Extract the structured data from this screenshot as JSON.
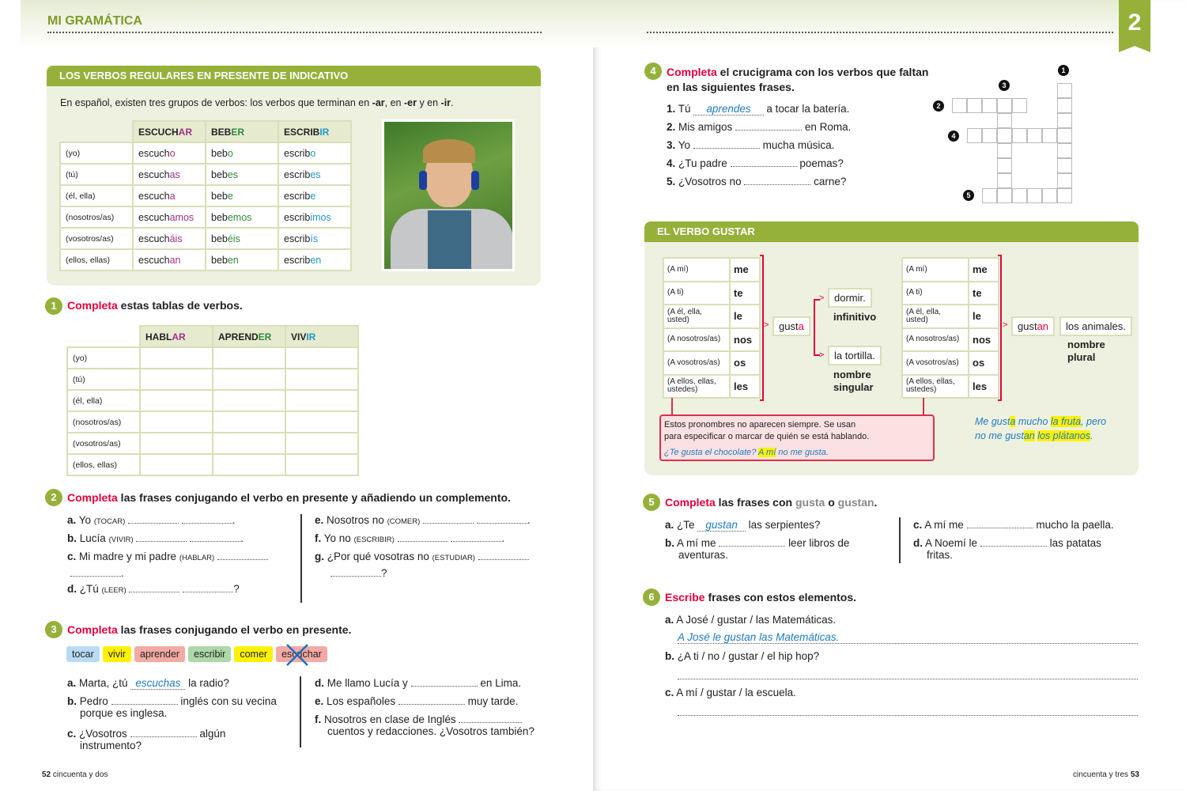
{
  "header": {
    "left_title": "MI GRAMÁTICA",
    "unit_number": "2"
  },
  "grammar_box": {
    "title": "LOS VERBOS REGULARES EN PRESENTE DE INDICATIVO",
    "intro": [
      "En español, existen tres grupos de verbos: los verbos que terminan en ",
      "-ar",
      ", en ",
      "-er",
      " y en ",
      "-ir",
      "."
    ],
    "columns": [
      [
        "ESCUCH",
        "AR"
      ],
      [
        "BEB",
        "ER"
      ],
      [
        "ESCRIB",
        "IR"
      ]
    ],
    "rows": [
      {
        "person": "(yo)",
        "forms": [
          [
            "escuch",
            "o"
          ],
          [
            "beb",
            "o"
          ],
          [
            "escrib",
            "o"
          ]
        ]
      },
      {
        "person": "(tú)",
        "forms": [
          [
            "escuch",
            "as"
          ],
          [
            "beb",
            "es"
          ],
          [
            "escrib",
            "es"
          ]
        ]
      },
      {
        "person": "(él, ella)",
        "forms": [
          [
            "escuch",
            "a"
          ],
          [
            "beb",
            "e"
          ],
          [
            "escrib",
            "e"
          ]
        ]
      },
      {
        "person": "(nosotros/as)",
        "forms": [
          [
            "escuch",
            "amos"
          ],
          [
            "beb",
            "emos"
          ],
          [
            "escrib",
            "imos"
          ]
        ]
      },
      {
        "person": "(vosotros/as)",
        "forms": [
          [
            "escuch",
            "áis"
          ],
          [
            "beb",
            "éis"
          ],
          [
            "escrib",
            "ís"
          ]
        ]
      },
      {
        "person": "(ellos, ellas)",
        "forms": [
          [
            "escuch",
            "an"
          ],
          [
            "beb",
            "en"
          ],
          [
            "escrib",
            "en"
          ]
        ]
      }
    ],
    "photo": "young man with headphones lying on grass"
  },
  "ex1": {
    "num": "1",
    "verb": "Completa",
    "rest": " estas tablas de verbos.",
    "columns": [
      [
        "HABL",
        "AR"
      ],
      [
        "APREND",
        "ER"
      ],
      [
        "VIV",
        "IR"
      ]
    ],
    "persons": [
      "(yo)",
      "(tú)",
      "(él, ella)",
      "(nosotros/as)",
      "(vosotros/as)",
      "(ellos, ellas)"
    ]
  },
  "ex2": {
    "num": "2",
    "verb": "Completa",
    "rest": " las frases conjugando el verbo en presente y añadiendo un complemento.",
    "items": [
      {
        "l": "a.",
        "t": "Yo",
        "v": "(TOCAR)",
        "end": "."
      },
      {
        "l": "b.",
        "t": "Lucía",
        "v": "(VIVIR)",
        "end": "."
      },
      {
        "l": "c.",
        "t": "Mi madre y mi padre",
        "v": "(HABLAR)",
        "end": "."
      },
      {
        "l": "d.",
        "t": "¿Tú",
        "v": "(LEER)",
        "end": "?"
      },
      {
        "l": "e.",
        "t": "Nosotros no",
        "v": "(COMER)",
        "end": "."
      },
      {
        "l": "f.",
        "t": "Yo no",
        "v": "(ESCRIBIR)",
        "end": "."
      },
      {
        "l": "g.",
        "t": "¿Por qué vosotras no",
        "v": "(ESTUDIAR)",
        "end": "?"
      }
    ]
  },
  "ex3": {
    "num": "3",
    "verb": "Completa",
    "rest": " las frases conjugando el verbo en presente.",
    "chips": [
      {
        "t": "tocar",
        "c": "#b7dbf3"
      },
      {
        "t": "vivir",
        "c": "#fff200"
      },
      {
        "t": "aprender",
        "c": "#f2aaa3"
      },
      {
        "t": "escribir",
        "c": "#add8a8"
      },
      {
        "t": "comer",
        "c": "#fff200"
      },
      {
        "t": "escuchar",
        "c": "#f2aaa3",
        "crossed": true
      }
    ],
    "items": {
      "a": [
        "a.",
        "Marta, ¿tú",
        "escuchas",
        "la radio?"
      ],
      "b": [
        "b.",
        "Pedro",
        "inglés con su vecina",
        "porque es inglesa."
      ],
      "c": [
        "c.",
        "¿Vosotros",
        "algún",
        "instrumento?"
      ],
      "d": [
        "d.",
        "Me llamo Lucía y",
        "en Lima."
      ],
      "e": [
        "e.",
        "Los españoles",
        "muy tarde."
      ],
      "f": [
        "f.",
        "Nosotros en clase de Inglés",
        "cuentos y redacciones. ¿Vosotros también?"
      ]
    }
  },
  "ex4": {
    "num": "4",
    "verb": "Completa",
    "rest": " el crucigrama con los verbos que faltan",
    "rest2": "en las siguientes frases.",
    "items": [
      {
        "l": "1.",
        "a": "Tú",
        "ans": "aprendes",
        "b": "a tocar la batería."
      },
      {
        "l": "2.",
        "a": "Mis amigos",
        "b": "en Roma."
      },
      {
        "l": "3.",
        "a": "Yo",
        "b": "mucha música."
      },
      {
        "l": "4.",
        "a": "¿Tu padre",
        "b": "poemas?"
      },
      {
        "l": "5.",
        "a": "¿Vosotros no",
        "b": "carne?"
      }
    ],
    "clue_numbers": [
      "1",
      "2",
      "3",
      "4",
      "5"
    ]
  },
  "gustar_box": {
    "title_pre": "EL VERBO ",
    "title_bold": "GUSTAR",
    "pronouns": [
      [
        "(A mí)",
        "me"
      ],
      [
        "(A ti)",
        "te"
      ],
      [
        "(A él, ella, usted)",
        "le"
      ],
      [
        "(A nosotros/as)",
        "nos"
      ],
      [
        "(A vosotros/as)",
        "os"
      ],
      [
        "(A ellos, ellas, ustedes)",
        "les"
      ]
    ],
    "gusta": [
      "gust",
      "a"
    ],
    "gustan": [
      "gust",
      "an"
    ],
    "dormir": "dormir.",
    "infinitivo": "infinitivo",
    "tortilla": "la tortilla.",
    "nombre_singular": [
      "nombre",
      "singular"
    ],
    "animales": "los animales.",
    "nombre_plural": [
      "nombre",
      "plural"
    ],
    "note": [
      "Estos pronombres no aparecen siempre. Se usan",
      "para especificar o marcar de quién se está hablando."
    ],
    "note_example": [
      "¿Te gusta el chocolate? ",
      "A mí",
      " no me gusta."
    ],
    "example": [
      "Me gust",
      "a",
      " mucho ",
      "la fruta",
      ", pero",
      "no me gust",
      "an",
      " ",
      "los plátanos",
      "."
    ]
  },
  "ex5": {
    "num": "5",
    "verb": "Completa",
    "rest": " las frases con ",
    "g1": "gusta",
    "o": " o ",
    "g2": "gustan",
    "items": {
      "a": [
        "a.",
        "¿Te",
        "gustan",
        "las serpientes?"
      ],
      "b": [
        "b.",
        "A mí me",
        "leer libros de",
        "aventuras."
      ],
      "c": [
        "c.",
        "A mí me",
        "mucho la paella."
      ],
      "d": [
        "d.",
        "A Noemí le",
        "las patatas",
        "fritas."
      ]
    }
  },
  "ex6": {
    "num": "6",
    "verb": "Escribe",
    "rest": " frases con estos elementos.",
    "items": [
      {
        "l": "a.",
        "t": "A José / gustar / las Matemáticas.",
        "ans": "A José le gustan las Matemáticas."
      },
      {
        "l": "b.",
        "t": "¿A ti / no / gustar / el hip hop?"
      },
      {
        "l": "c.",
        "t": "A mí / gustar / la escuela."
      }
    ]
  },
  "footer": {
    "left_num": "52",
    "left_text": "cincuenta y dos",
    "right_text": "cincuenta y tres",
    "right_num": "53"
  },
  "colors": {
    "green": "#95b13a",
    "red": "#e4003a",
    "blue": "#1e7bc4",
    "ar": "#a1308c",
    "er": "#2f8a3c",
    "ir": "#1f97c9"
  }
}
